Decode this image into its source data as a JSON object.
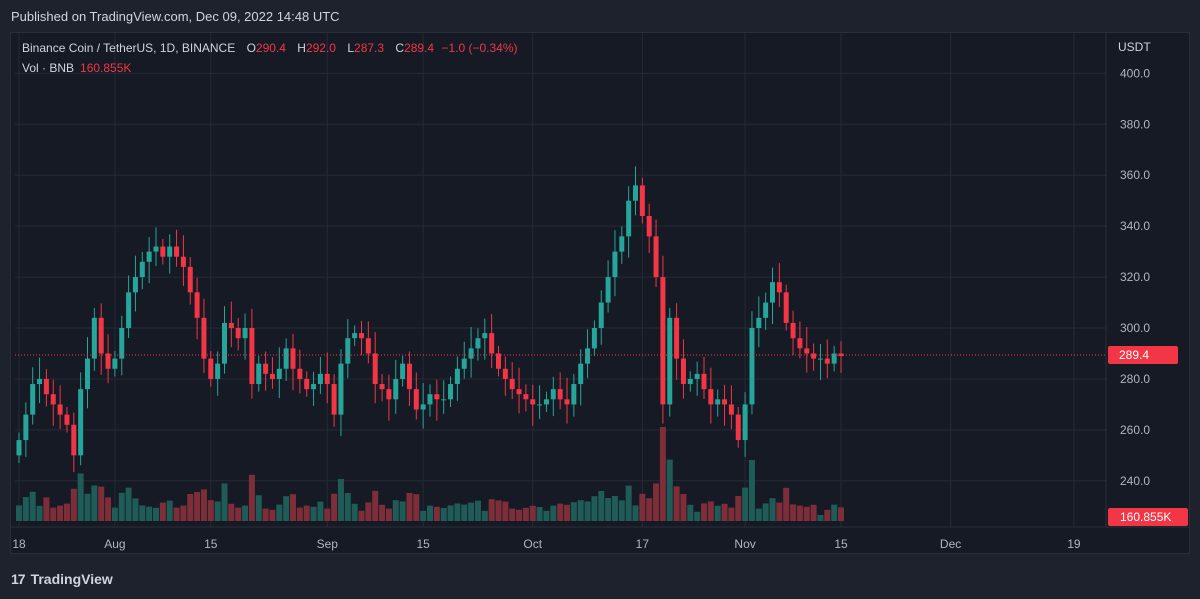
{
  "header": {
    "published": "Published on TradingView.com, Dec 09, 2022 14:48 UTC"
  },
  "legend": {
    "symbol": "Binance Coin / TetherUS, 1D, BINANCE",
    "o_label": "O",
    "o_value": "290.4",
    "h_label": "H",
    "h_value": "292.0",
    "l_label": "L",
    "l_value": "287.3",
    "c_label": "C",
    "c_value": "289.4",
    "change": "−1.0 (−0.34%)",
    "vol_label": "Vol · BNB",
    "vol_value": "160.855K"
  },
  "footer": {
    "brand": "TradingView",
    "logo_icon": "tradingview-logo-icon"
  },
  "colors": {
    "up": "#26a69a",
    "down": "#f23645",
    "up_vol": "#1f5b57",
    "down_vol": "#7d2e38",
    "grid": "#262a35",
    "bg": "#161a25"
  },
  "chart_data": {
    "type": "candlestick",
    "title": "Binance Coin / TetherUS, 1D, BINANCE",
    "ylabel": "USDT",
    "y_ticks": [
      "240.0",
      "260.0",
      "280.0",
      "300.0",
      "320.0",
      "340.0",
      "360.0",
      "380.0",
      "400.0"
    ],
    "ylim": [
      225,
      408
    ],
    "x_ticks": [
      {
        "label": "18",
        "date": "2022-07-18"
      },
      {
        "label": "Aug",
        "date": "2022-08-01"
      },
      {
        "label": "15",
        "date": "2022-08-15"
      },
      {
        "label": "Sep",
        "date": "2022-09-01"
      },
      {
        "label": "15",
        "date": "2022-09-15"
      },
      {
        "label": "Oct",
        "date": "2022-10-01"
      },
      {
        "label": "17",
        "date": "2022-10-17"
      },
      {
        "label": "Nov",
        "date": "2022-11-01"
      },
      {
        "label": "15",
        "date": "2022-11-15"
      },
      {
        "label": "Dec",
        "date": "2022-12-01"
      },
      {
        "label": "19",
        "date": "2022-12-19"
      }
    ],
    "first_date": "2022-07-18",
    "last_price": "289.4",
    "last_volume": "160.855K",
    "last_price_value": 289.4,
    "closes": [
      256,
      266,
      278,
      280,
      274,
      270,
      266,
      262,
      250,
      276,
      288,
      304,
      290,
      284,
      288,
      300,
      314,
      320,
      326,
      330,
      332,
      328,
      332,
      328,
      324,
      314,
      304,
      288,
      280,
      286,
      302,
      300,
      296,
      300,
      278,
      286,
      282,
      280,
      284,
      292,
      284,
      280,
      276,
      278,
      282,
      278,
      266,
      286,
      296,
      298,
      296,
      290,
      278,
      276,
      272,
      280,
      286,
      276,
      268,
      270,
      274,
      272,
      272,
      278,
      284,
      288,
      292,
      296,
      298,
      290,
      284,
      280,
      276,
      274,
      272,
      270,
      270,
      272,
      276,
      272,
      270,
      278,
      286,
      292,
      300,
      310,
      320,
      330,
      336,
      350,
      356,
      344,
      336,
      320,
      270,
      304,
      288,
      278,
      280,
      282,
      276,
      270,
      272,
      270,
      266,
      256,
      270,
      300,
      304,
      310,
      318,
      314,
      302,
      296,
      292,
      290,
      288,
      288,
      286,
      290,
      289
    ]
  }
}
